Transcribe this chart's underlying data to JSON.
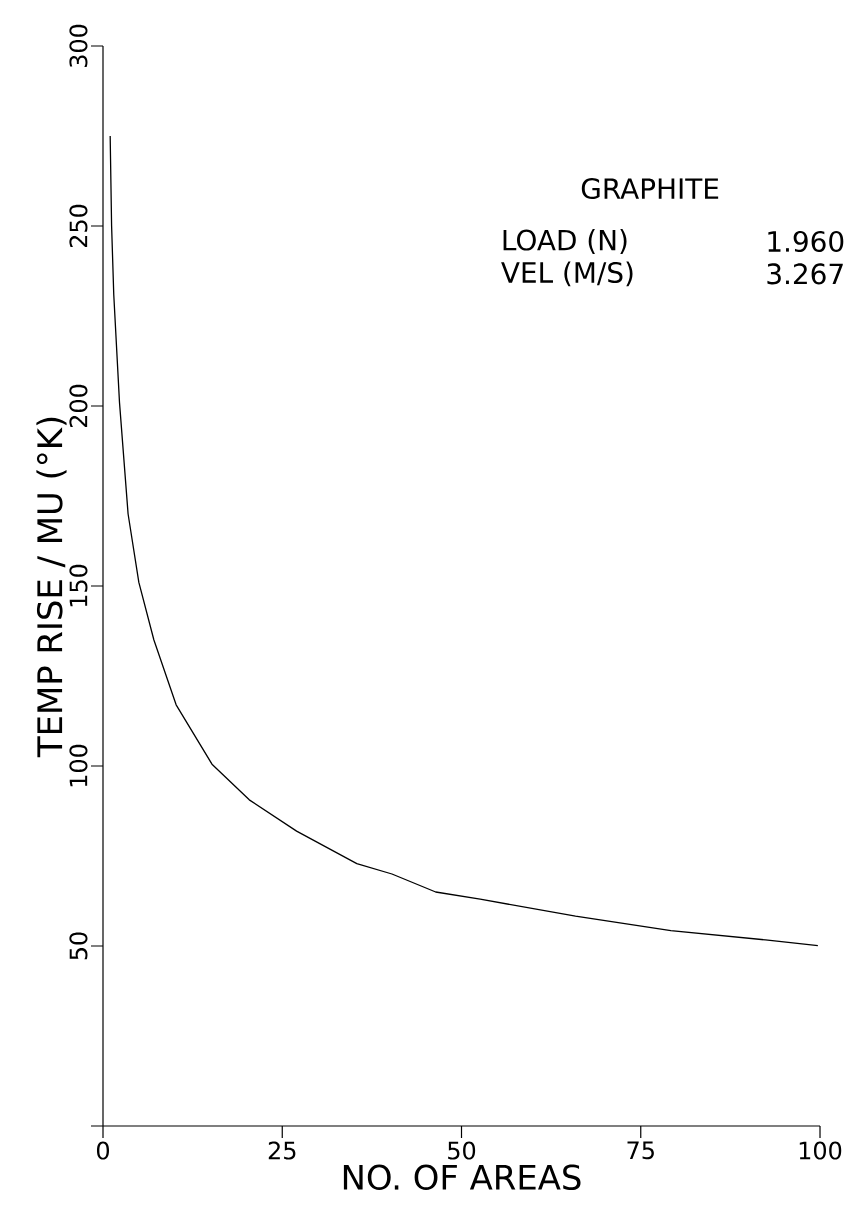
{
  "chart_data": {
    "type": "line",
    "title": "GRAPHITE",
    "xlabel": "NO. OF AREAS",
    "ylabel": "TEMP RISE / MU (°K)",
    "annotations": [
      "LOAD (N)",
      "1.960",
      "VEL (M/S)",
      "3.267"
    ],
    "x": [
      1,
      1.2,
      1.5,
      2.3,
      3.5,
      5.0,
      7.1,
      10.2,
      15.2,
      20.4,
      27.0,
      35.4,
      40.3,
      46.4,
      52.6,
      65.9,
      79.2,
      92.4,
      99.7
    ],
    "series": [
      {
        "color": "#000000",
        "values": [
          275,
          250,
          231,
          201,
          170,
          151,
          135,
          117,
          100.5,
          90.6,
          81.9,
          72.9,
          70,
          65,
          63,
          58.3,
          54.3,
          51.7,
          50.1
        ]
      }
    ],
    "xlim": [
      0,
      100
    ],
    "ylim": [
      0,
      300
    ],
    "xticks": [
      0,
      25,
      50,
      75,
      100
    ],
    "yticks": [
      {
        "value": 0,
        "label": null
      },
      50,
      100,
      150,
      200,
      250,
      300
    ],
    "grid": false,
    "marker": "none",
    "line_style": "solid"
  }
}
